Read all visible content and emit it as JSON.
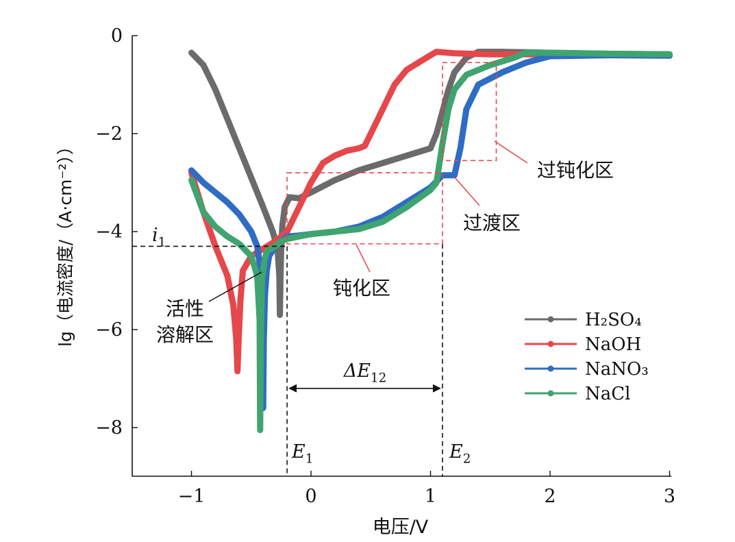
{
  "chart_data": {
    "type": "line",
    "xlabel": "电压/V",
    "ylabel": "lg（电流密度/（A·cm⁻²））",
    "xlim": [
      -1.5,
      3
    ],
    "ylim": [
      -9,
      0
    ],
    "xticks": [
      -1,
      0,
      1,
      2,
      3
    ],
    "yticks": [
      0,
      -2,
      -4,
      -6,
      -8
    ],
    "xtick_labels": [
      "−1",
      "0",
      "1",
      "2",
      "3"
    ],
    "ytick_labels": [
      "0",
      "−2",
      "−4",
      "−6",
      "−8"
    ],
    "grid": false,
    "legend_position": "bottom-right",
    "series": [
      {
        "name": "H₂SO₄",
        "color": "#6b6b6b",
        "x": [
          -1.0,
          -0.9,
          -0.8,
          -0.7,
          -0.6,
          -0.5,
          -0.4,
          -0.32,
          -0.28,
          -0.265,
          -0.26,
          -0.255,
          -0.25,
          -0.24,
          -0.22,
          -0.18,
          -0.1,
          0.0,
          0.2,
          0.4,
          0.6,
          0.8,
          1.0,
          1.05,
          1.1,
          1.15,
          1.2,
          1.3,
          1.4,
          1.6,
          2.0,
          2.5,
          3.0
        ],
        "y": [
          -0.35,
          -0.6,
          -1.1,
          -1.7,
          -2.3,
          -2.9,
          -3.5,
          -4.0,
          -4.35,
          -4.9,
          -5.7,
          -4.9,
          -4.4,
          -3.9,
          -3.5,
          -3.3,
          -3.32,
          -3.2,
          -2.95,
          -2.75,
          -2.6,
          -2.45,
          -2.3,
          -2.0,
          -1.55,
          -1.1,
          -0.75,
          -0.45,
          -0.33,
          -0.33,
          -0.35,
          -0.37,
          -0.38
        ]
      },
      {
        "name": "NaOH",
        "color": "#e5474b",
        "x": [
          -1.0,
          -0.9,
          -0.8,
          -0.7,
          -0.65,
          -0.625,
          -0.615,
          -0.605,
          -0.59,
          -0.57,
          -0.5,
          -0.4,
          -0.3,
          -0.2,
          -0.1,
          0.0,
          0.1,
          0.2,
          0.3,
          0.4,
          0.45,
          0.5,
          0.6,
          0.7,
          0.8,
          0.9,
          1.0,
          1.05,
          1.2,
          1.5,
          2.0,
          2.5,
          3.0
        ],
        "y": [
          -2.8,
          -3.6,
          -4.3,
          -4.9,
          -5.5,
          -6.2,
          -6.85,
          -6.2,
          -5.4,
          -4.8,
          -4.5,
          -4.35,
          -4.2,
          -4.0,
          -3.5,
          -3.0,
          -2.6,
          -2.45,
          -2.35,
          -2.3,
          -2.25,
          -2.0,
          -1.5,
          -1.0,
          -0.7,
          -0.55,
          -0.4,
          -0.33,
          -0.36,
          -0.38,
          -0.38,
          -0.39,
          -0.4
        ]
      },
      {
        "name": "NaNO₃",
        "color": "#2f6cc4",
        "x": [
          -1.0,
          -0.9,
          -0.8,
          -0.7,
          -0.6,
          -0.5,
          -0.45,
          -0.42,
          -0.405,
          -0.4,
          -0.395,
          -0.385,
          -0.37,
          -0.35,
          -0.3,
          -0.25,
          -0.2,
          -0.1,
          0.0,
          0.2,
          0.4,
          0.6,
          0.8,
          1.0,
          1.1,
          1.2,
          1.25,
          1.3,
          1.4,
          1.6,
          1.8,
          2.0,
          2.5,
          3.0
        ],
        "y": [
          -2.75,
          -3.0,
          -3.2,
          -3.4,
          -3.65,
          -4.0,
          -4.3,
          -4.8,
          -5.5,
          -7.6,
          -6.2,
          -5.3,
          -4.8,
          -4.5,
          -4.3,
          -4.2,
          -4.1,
          -4.08,
          -4.05,
          -4.0,
          -3.9,
          -3.7,
          -3.4,
          -3.1,
          -2.85,
          -2.85,
          -2.3,
          -1.5,
          -1.0,
          -0.75,
          -0.55,
          -0.42,
          -0.4,
          -0.41
        ]
      },
      {
        "name": "NaCl",
        "color": "#3fa46f",
        "x": [
          -1.0,
          -0.9,
          -0.8,
          -0.7,
          -0.6,
          -0.5,
          -0.45,
          -0.43,
          -0.425,
          -0.42,
          -0.415,
          -0.41,
          -0.39,
          -0.37,
          -0.3,
          -0.25,
          -0.2,
          -0.1,
          0.0,
          0.2,
          0.4,
          0.6,
          0.8,
          1.0,
          1.05,
          1.1,
          1.15,
          1.2,
          1.3,
          1.5,
          1.7,
          1.8,
          2.0,
          2.5,
          3.0
        ],
        "y": [
          -2.95,
          -3.6,
          -3.9,
          -4.1,
          -4.25,
          -4.5,
          -4.9,
          -5.8,
          -8.05,
          -6.5,
          -5.6,
          -5.0,
          -4.6,
          -4.4,
          -4.3,
          -4.2,
          -4.15,
          -4.1,
          -4.05,
          -4.0,
          -3.95,
          -3.8,
          -3.5,
          -3.15,
          -3.0,
          -2.2,
          -1.5,
          -1.1,
          -0.8,
          -0.6,
          -0.45,
          -0.35,
          -0.35,
          -0.37,
          -0.38
        ]
      }
    ],
    "annotations": {
      "i1_label": "i",
      "i1_sub": "1",
      "i1_y": -4.3,
      "e1_label": "E",
      "e1_sub": "1",
      "e1_x": -0.2,
      "e2_label": "E",
      "e2_sub": "2",
      "e2_x": 1.1,
      "delta_label": "ΔE",
      "delta_sub": "12",
      "delta_y": -7.2,
      "region_active_line1": "活性",
      "region_active_line2": "溶解区",
      "region_passive": "钝化区",
      "region_transition": "过渡区",
      "region_transpassive": "过钝化区",
      "passive_box": {
        "x1": -0.2,
        "x2": 1.1,
        "y1": -4.25,
        "y2": -2.8
      },
      "transpassive_box": {
        "x1": 1.1,
        "x2": 1.55,
        "y1": -2.55,
        "y2": -0.55
      },
      "box_color": "#e5474b"
    }
  }
}
